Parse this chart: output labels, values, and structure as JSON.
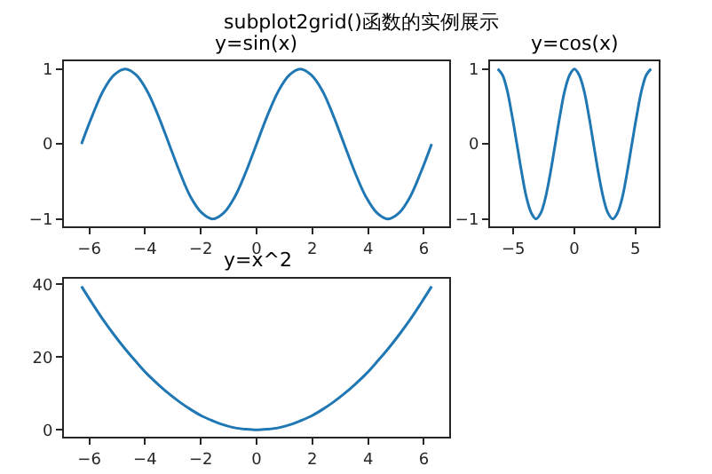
{
  "chart_data": [
    {
      "type": "line",
      "title": "y=sin(x)",
      "annotations": [
        "subplot2grid()函数的实例展示"
      ],
      "color": "#1f77b4",
      "x": [
        -6.28,
        -5.89,
        -5.5,
        -5.11,
        -4.71,
        -4.32,
        -3.93,
        -3.53,
        -3.14,
        -2.75,
        -2.36,
        -1.96,
        -1.57,
        -1.18,
        -0.79,
        -0.39,
        0,
        0.39,
        0.79,
        1.18,
        1.57,
        1.96,
        2.36,
        2.75,
        3.14,
        3.53,
        3.93,
        4.32,
        4.71,
        5.11,
        5.5,
        5.89,
        6.28
      ],
      "values": [
        0,
        0.38,
        0.71,
        0.92,
        1,
        0.92,
        0.71,
        0.38,
        0,
        -0.38,
        -0.71,
        -0.92,
        -1,
        -0.92,
        -0.71,
        -0.38,
        0,
        0.38,
        0.71,
        0.92,
        1,
        0.92,
        0.71,
        0.38,
        0,
        -0.38,
        -0.71,
        -0.92,
        -1,
        -0.92,
        -0.71,
        -0.38,
        0
      ],
      "xlim": [
        -6.91,
        6.91
      ],
      "ylim": [
        -1.1,
        1.1
      ],
      "xticks": [
        -6,
        -4,
        -2,
        0,
        2,
        4,
        6
      ],
      "yticks": [
        -1,
        0,
        1
      ]
    },
    {
      "type": "line",
      "title": "y=cos(x)",
      "color": "#1f77b4",
      "x": [
        -6.28,
        -5.89,
        -5.5,
        -5.11,
        -4.71,
        -4.32,
        -3.93,
        -3.53,
        -3.14,
        -2.75,
        -2.36,
        -1.96,
        -1.57,
        -1.18,
        -0.79,
        -0.39,
        0,
        0.39,
        0.79,
        1.18,
        1.57,
        1.96,
        2.36,
        2.75,
        3.14,
        3.53,
        3.93,
        4.32,
        4.71,
        5.11,
        5.5,
        5.89,
        6.28
      ],
      "values": [
        1,
        0.92,
        0.71,
        0.38,
        0,
        -0.38,
        -0.71,
        -0.92,
        -1,
        -0.92,
        -0.71,
        -0.38,
        0,
        0.38,
        0.71,
        0.92,
        1,
        0.92,
        0.71,
        0.38,
        0,
        -0.38,
        -0.71,
        -0.92,
        -1,
        -0.92,
        -0.71,
        -0.38,
        0,
        0.38,
        0.71,
        0.92,
        1
      ],
      "xlim": [
        -6.91,
        6.91
      ],
      "ylim": [
        -1.1,
        1.1
      ],
      "xticks": [
        -5,
        0,
        5
      ],
      "yticks": [
        -1,
        0,
        1
      ]
    },
    {
      "type": "line",
      "title": "y=x^2",
      "color": "#1f77b4",
      "x": [
        -6.28,
        -5.89,
        -5.5,
        -5.11,
        -4.71,
        -4.32,
        -3.93,
        -3.53,
        -3.14,
        -2.75,
        -2.36,
        -1.96,
        -1.57,
        -1.18,
        -0.79,
        -0.39,
        0,
        0.39,
        0.79,
        1.18,
        1.57,
        1.96,
        2.36,
        2.75,
        3.14,
        3.53,
        3.93,
        4.32,
        4.71,
        5.11,
        5.5,
        5.89,
        6.28
      ],
      "values": [
        39.4,
        34.7,
        30.2,
        26.1,
        22.2,
        18.7,
        15.4,
        12.5,
        9.9,
        7.6,
        5.6,
        3.8,
        2.5,
        1.4,
        0.6,
        0.2,
        0,
        0.2,
        0.6,
        1.4,
        2.5,
        3.8,
        5.6,
        7.6,
        9.9,
        12.5,
        15.4,
        18.7,
        22.2,
        26.1,
        30.2,
        34.7,
        39.4
      ],
      "xlim": [
        -6.91,
        6.91
      ],
      "ylim": [
        -1.97,
        41.4
      ],
      "xticks": [
        -6,
        -4,
        -2,
        0,
        2,
        4,
        6
      ],
      "yticks": [
        0,
        20,
        40
      ]
    }
  ]
}
